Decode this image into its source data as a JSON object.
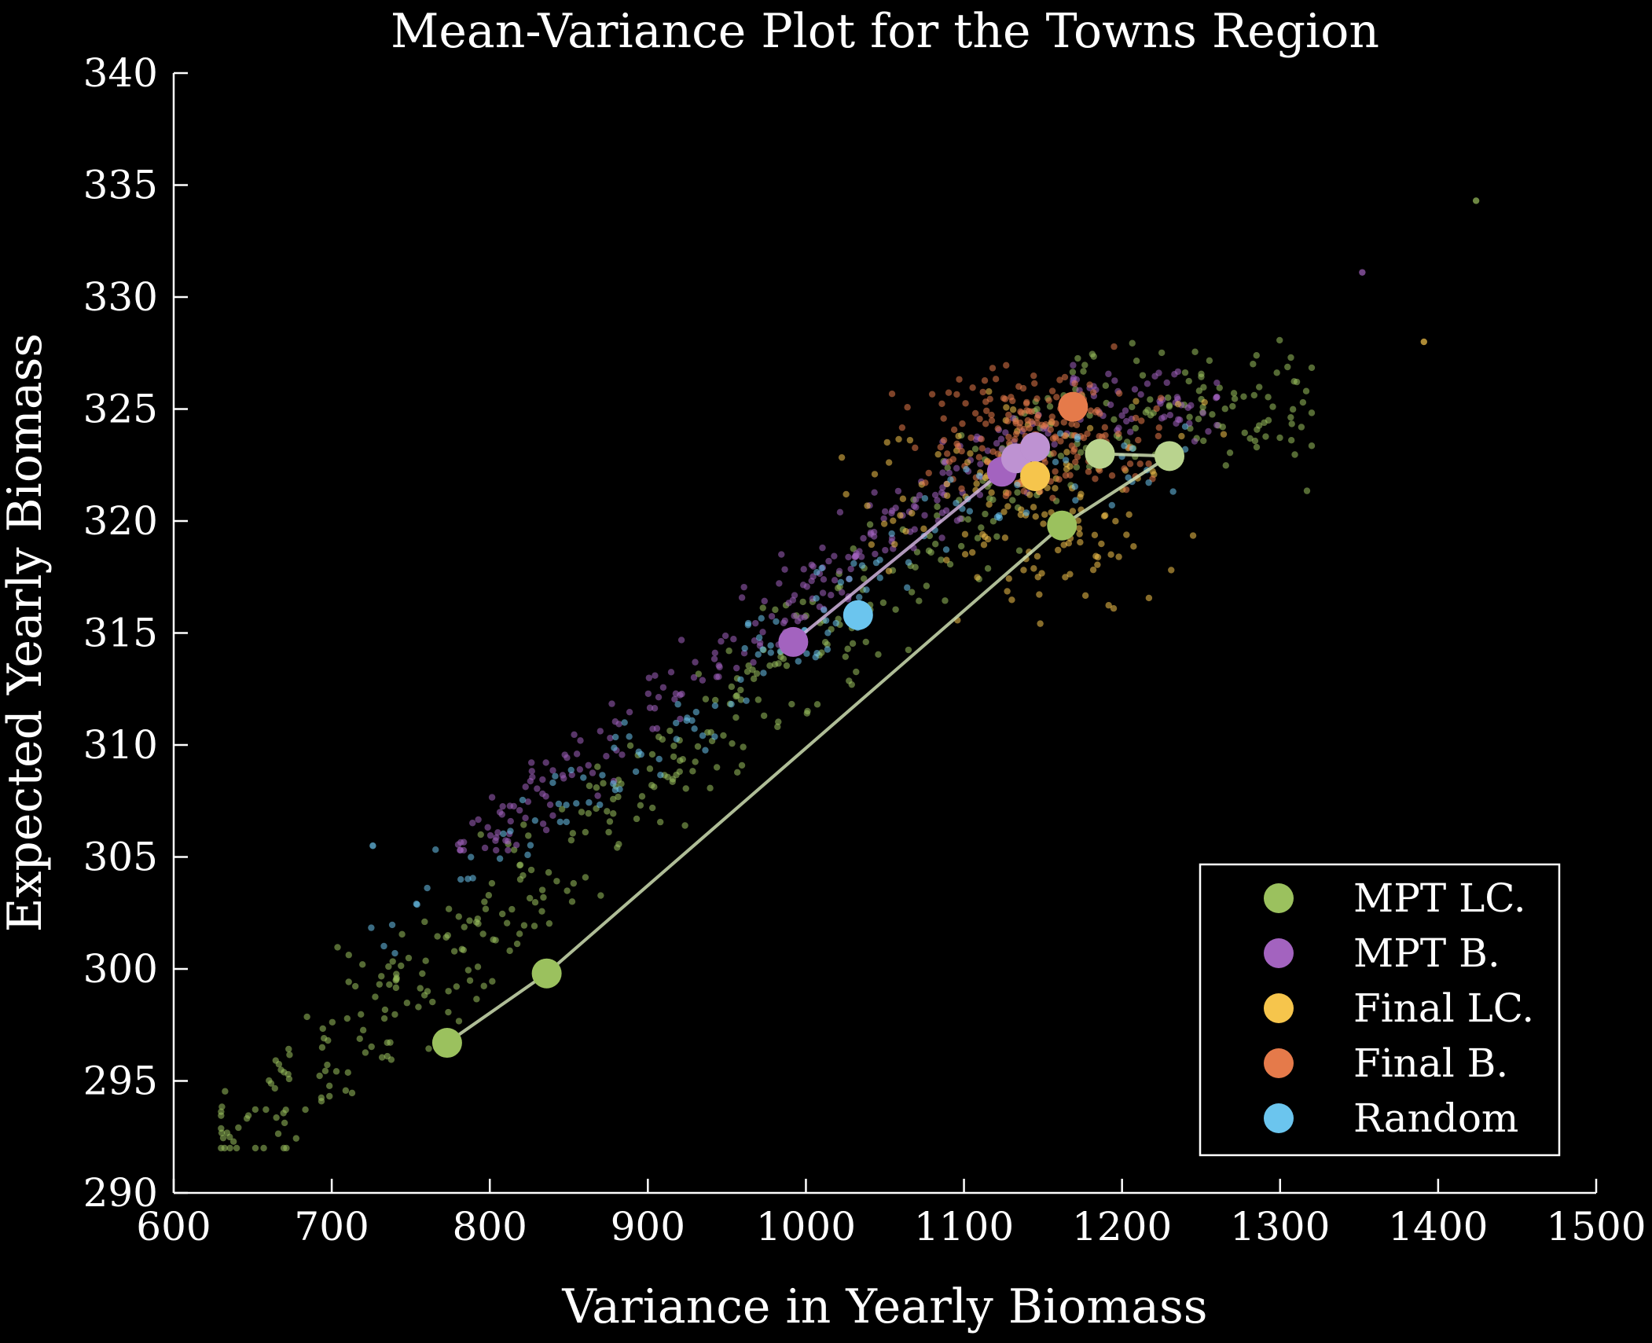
{
  "chart_data": {
    "type": "scatter",
    "title": "Mean-Variance Plot for the Towns Region",
    "xlabel": "Variance in Yearly Biomass",
    "ylabel": "Expected Yearly Biomass",
    "xlim": [
      600,
      1500
    ],
    "ylim": [
      290,
      340
    ],
    "x_ticks": [
      "600",
      "700",
      "800",
      "900",
      "1000",
      "1100",
      "1200",
      "1300",
      "1400",
      "1500"
    ],
    "y_ticks": [
      "290",
      "295",
      "300",
      "305",
      "310",
      "315",
      "320",
      "325",
      "330",
      "335",
      "340"
    ],
    "grid": false,
    "legend_position": "bottom-right",
    "background": "#000000",
    "series": [
      {
        "name": "MPT LC.",
        "color": "#9bc15e",
        "cloud": {
          "n": 480,
          "x_range": [
            630,
            1320
          ],
          "y_range": [
            292,
            328.6
          ],
          "trend": "rising",
          "outlier": [
            1424,
            334.3
          ]
        },
        "path": [
          [
            773,
            296.7
          ],
          [
            836,
            299.8
          ],
          [
            1162,
            319.8
          ],
          [
            1230,
            322.9
          ],
          [
            1186,
            323.0
          ]
        ]
      },
      {
        "name": "MPT B.",
        "color": "#a363bf",
        "cloud": {
          "n": 300,
          "x_range": [
            780,
            1260
          ],
          "y_range": [
            305.3,
            327.6
          ],
          "trend": "rising",
          "outlier": [
            1352,
            331.1
          ]
        },
        "path": [
          [
            992,
            314.6
          ],
          [
            1124,
            322.2
          ],
          [
            1133,
            322.8
          ],
          [
            1145,
            323.3
          ]
        ]
      },
      {
        "name": "Final LC.",
        "color": "#f6c54c",
        "cloud": {
          "n": 150,
          "x_range": [
            1000,
            1290
          ],
          "y_range": [
            314,
            327
          ],
          "trend": "flat",
          "outlier": [
            1391,
            328.0
          ]
        },
        "path": [
          [
            1145,
            322.0
          ]
        ]
      },
      {
        "name": "Final B.",
        "color": "#e57a4a",
        "cloud": {
          "n": 200,
          "x_range": [
            1040,
            1250
          ],
          "y_range": [
            320,
            328.2
          ],
          "trend": "flat",
          "outlier": null
        },
        "path": [
          [
            1169,
            325.1
          ]
        ]
      },
      {
        "name": "Random",
        "color": "#6bc5ee",
        "cloud": {
          "n": 140,
          "x_range": [
            725,
            1240
          ],
          "y_range": [
            300.7,
            325
          ],
          "trend": "rising",
          "outlier": [
            726,
            305.5
          ]
        },
        "path": [
          [
            1033,
            315.8
          ]
        ]
      }
    ]
  }
}
